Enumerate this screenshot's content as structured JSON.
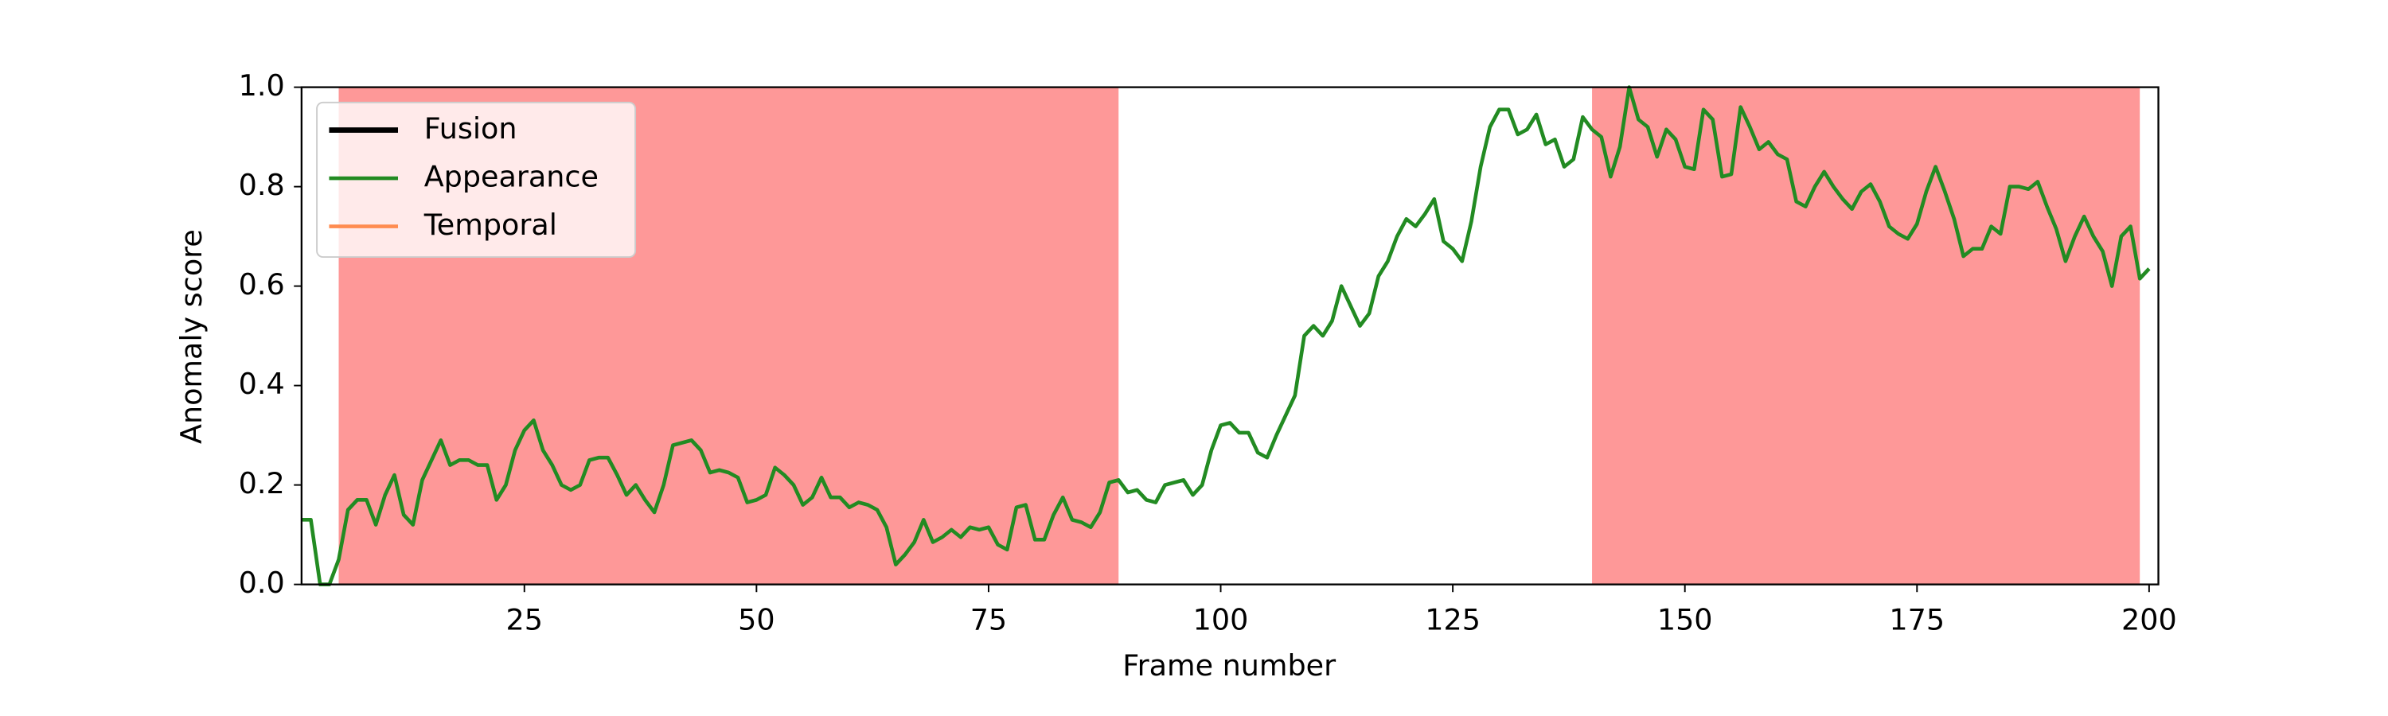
{
  "chart_data": {
    "type": "line",
    "x_label": "Frame number",
    "y_label": "Anomaly score",
    "x": [
      1,
      2,
      3,
      4,
      5,
      6,
      7,
      8,
      9,
      10,
      11,
      12,
      13,
      14,
      15,
      16,
      17,
      18,
      19,
      20,
      21,
      22,
      23,
      24,
      25,
      26,
      27,
      28,
      29,
      30,
      31,
      32,
      33,
      34,
      35,
      36,
      37,
      38,
      39,
      40,
      41,
      42,
      43,
      44,
      45,
      46,
      47,
      48,
      49,
      50,
      51,
      52,
      53,
      54,
      55,
      56,
      57,
      58,
      59,
      60,
      61,
      62,
      63,
      64,
      65,
      66,
      67,
      68,
      69,
      70,
      71,
      72,
      73,
      74,
      75,
      76,
      77,
      78,
      79,
      80,
      81,
      82,
      83,
      84,
      85,
      86,
      87,
      88,
      89,
      90,
      91,
      92,
      93,
      94,
      95,
      96,
      97,
      98,
      99,
      100,
      101,
      102,
      103,
      104,
      105,
      106,
      107,
      108,
      109,
      110,
      111,
      112,
      113,
      114,
      115,
      116,
      117,
      118,
      119,
      120,
      121,
      122,
      123,
      124,
      125,
      126,
      127,
      128,
      129,
      130,
      131,
      132,
      133,
      134,
      135,
      136,
      137,
      138,
      139,
      140,
      141,
      142,
      143,
      144,
      145,
      146,
      147,
      148,
      149,
      150,
      151,
      152,
      153,
      154,
      155,
      156,
      157,
      158,
      159,
      160,
      161,
      162,
      163,
      164,
      165,
      166,
      167,
      168,
      169,
      170,
      171,
      172,
      173,
      174,
      175,
      176,
      177,
      178,
      179,
      180,
      181,
      182,
      183,
      184,
      185,
      186,
      187,
      188,
      189,
      190,
      191,
      192,
      193,
      194,
      195,
      196,
      197,
      198,
      199,
      200
    ],
    "series": [
      {
        "name": "Appearance",
        "color": "#228b22",
        "values": [
          0.13,
          0.13,
          0.0,
          0.0,
          0.05,
          0.15,
          0.17,
          0.17,
          0.12,
          0.18,
          0.22,
          0.14,
          0.12,
          0.21,
          0.25,
          0.29,
          0.24,
          0.25,
          0.25,
          0.24,
          0.24,
          0.17,
          0.2,
          0.27,
          0.31,
          0.33,
          0.27,
          0.24,
          0.2,
          0.19,
          0.2,
          0.25,
          0.255,
          0.255,
          0.22,
          0.18,
          0.2,
          0.17,
          0.145,
          0.2,
          0.28,
          0.285,
          0.29,
          0.27,
          0.225,
          0.23,
          0.225,
          0.215,
          0.165,
          0.17,
          0.18,
          0.235,
          0.22,
          0.2,
          0.16,
          0.175,
          0.215,
          0.175,
          0.175,
          0.155,
          0.165,
          0.16,
          0.15,
          0.115,
          0.04,
          0.06,
          0.085,
          0.13,
          0.085,
          0.095,
          0.11,
          0.095,
          0.115,
          0.11,
          0.115,
          0.08,
          0.07,
          0.155,
          0.16,
          0.09,
          0.09,
          0.14,
          0.175,
          0.13,
          0.125,
          0.115,
          0.145,
          0.205,
          0.21,
          0.185,
          0.19,
          0.17,
          0.165,
          0.2,
          0.205,
          0.21,
          0.18,
          0.2,
          0.27,
          0.32,
          0.325,
          0.305,
          0.305,
          0.265,
          0.255,
          0.3,
          0.34,
          0.38,
          0.5,
          0.52,
          0.5,
          0.53,
          0.6,
          0.56,
          0.52,
          0.545,
          0.62,
          0.65,
          0.7,
          0.735,
          0.72,
          0.745,
          0.775,
          0.69,
          0.675,
          0.65,
          0.73,
          0.84,
          0.92,
          0.955,
          0.955,
          0.905,
          0.915,
          0.945,
          0.885,
          0.895,
          0.84,
          0.855,
          0.94,
          0.915,
          0.9,
          0.82,
          0.88,
          1.0,
          0.935,
          0.92,
          0.86,
          0.915,
          0.895,
          0.84,
          0.835,
          0.955,
          0.935,
          0.82,
          0.825,
          0.96,
          0.92,
          0.875,
          0.89,
          0.865,
          0.855,
          0.77,
          0.76,
          0.8,
          0.83,
          0.8,
          0.775,
          0.755,
          0.79,
          0.805,
          0.77,
          0.72,
          0.705,
          0.695,
          0.725,
          0.79,
          0.84,
          0.79,
          0.735,
          0.66,
          0.675,
          0.675,
          0.72,
          0.705,
          0.8,
          0.8,
          0.795,
          0.81,
          0.76,
          0.715,
          0.65,
          0.7,
          0.74,
          0.7,
          0.67,
          0.6,
          0.7,
          0.72,
          0.615,
          0.635
        ]
      }
    ],
    "legend": [
      {
        "name": "Fusion",
        "color": "#000000"
      },
      {
        "name": "Appearance",
        "color": "#228b22"
      },
      {
        "name": "Temporal",
        "color": "#ff8c50"
      }
    ],
    "shaded_regions": [
      [
        5,
        89
      ],
      [
        140,
        199
      ]
    ],
    "shade_color": "#fe9898",
    "xlim": [
      1,
      201
    ],
    "xticks": [
      25,
      50,
      75,
      100,
      125,
      150,
      175,
      200
    ],
    "ylim": [
      0,
      1
    ],
    "yticks": [
      {
        "value": 0,
        "label": "0.0"
      },
      {
        "value": 0.2,
        "label": "0.2"
      },
      {
        "value": 0.4,
        "label": "0.4"
      },
      {
        "value": 0.6,
        "label": "0.6"
      },
      {
        "value": 0.8,
        "label": "0.8"
      },
      {
        "value": 1,
        "label": "1.0"
      }
    ],
    "legend_position": "upper left"
  }
}
